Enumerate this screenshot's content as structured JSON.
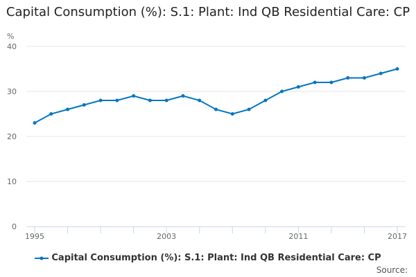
{
  "chart_data": {
    "type": "line",
    "title": "Capital Consumption (%): S.1: Plant: Ind QB Residential Care: CP",
    "ylabel": "%",
    "xlabel": "",
    "x": [
      1995,
      1996,
      1997,
      1998,
      1999,
      2000,
      2001,
      2002,
      2003,
      2004,
      2005,
      2006,
      2007,
      2008,
      2009,
      2010,
      2011,
      2012,
      2013,
      2014,
      2015,
      2016,
      2017
    ],
    "series": [
      {
        "name": "Capital Consumption (%): S.1: Plant: Ind QB Residential Care: CP",
        "color": "#0075c2",
        "values": [
          23,
          25,
          26,
          27,
          28,
          28,
          29,
          28,
          28,
          29,
          28,
          26,
          25,
          26,
          28,
          30,
          31,
          32,
          32,
          33,
          33,
          34,
          35
        ]
      }
    ],
    "ylim": [
      0,
      40
    ],
    "yticks": [
      "0",
      "10",
      "20",
      "30",
      "40"
    ],
    "xticks": [
      "1995",
      "2003",
      "2011",
      "2017"
    ],
    "grid": true,
    "legend": "bottom"
  },
  "source_label": "Source:"
}
